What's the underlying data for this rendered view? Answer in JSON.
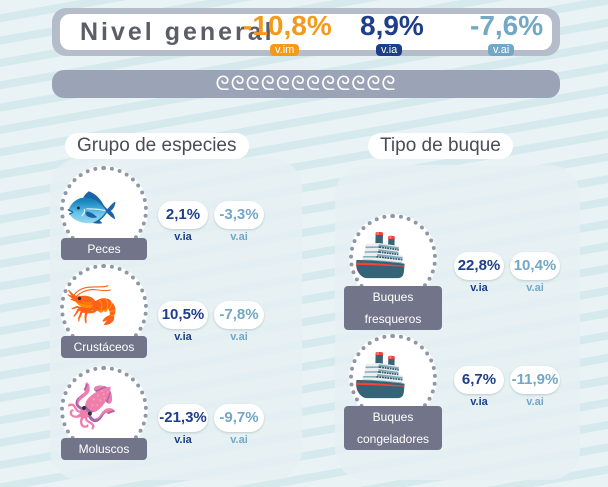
{
  "header": {
    "title": "Nivel general",
    "vim": {
      "value": "-10,8%",
      "label": "v.im"
    },
    "via": {
      "value": "8,9%",
      "label": "v.ia"
    },
    "vai": {
      "value": "-7,6%",
      "label": "v.ai"
    }
  },
  "colors": {
    "vim": "#f39a1a",
    "via": "#1d3e8a",
    "vai": "#72a7c6",
    "label_bg": "#72758a"
  },
  "ornament": "ᘓᘓᘓᘓᘓᘓᘓᘓᘓᘓᘓᘓ",
  "species": {
    "title": "Grupo de especies",
    "items": [
      {
        "name": "Peces",
        "icon": "fish-icon",
        "via": "2,1%",
        "vai": "-3,3%",
        "via_label": "v.ia",
        "vai_label": "v.ai"
      },
      {
        "name": "Crustáceos",
        "icon": "shrimp-icon",
        "via": "10,5%",
        "vai": "-7,8%",
        "via_label": "v.ia",
        "vai_label": "v.ai"
      },
      {
        "name": "Moluscos",
        "icon": "squid-icon",
        "via": "-21,3%",
        "vai": "-9,7%",
        "via_label": "v.ia",
        "vai_label": "v.ai"
      }
    ]
  },
  "vessels": {
    "title": "Tipo de buque",
    "items": [
      {
        "name": "Buques fresqueros",
        "icon": "fishing-boat-icon",
        "via": "22,8%",
        "vai": "10,4%",
        "via_label": "v.ia",
        "vai_label": "v.ai"
      },
      {
        "name": "Buques congeladores",
        "icon": "freezer-boat-icon",
        "via": "6,7%",
        "vai": "-11,9%",
        "via_label": "v.ia",
        "vai_label": "v.ai"
      }
    ]
  }
}
